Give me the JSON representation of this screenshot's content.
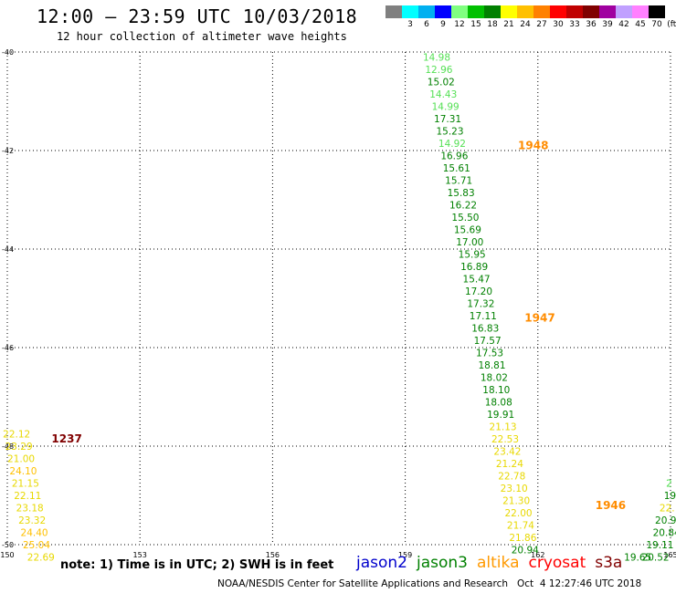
{
  "header": {
    "title": "12:00 — 23:59 UTC 10/03/2018",
    "subtitle": "12 hour collection of altimeter wave heights"
  },
  "legend": {
    "colors": [
      "#808080",
      "#00ffff",
      "#00b0f0",
      "#0000ff",
      "#80ff80",
      "#00c000",
      "#008000",
      "#ffff00",
      "#ffc000",
      "#ff8000",
      "#ff0000",
      "#c00000",
      "#800000",
      "#a000a0",
      "#c0a0ff",
      "#ff80ff",
      "#000000"
    ],
    "labels": [
      "",
      "3",
      "6",
      "9",
      "12",
      "15",
      "18",
      "21",
      "24",
      "27",
      "30",
      "33",
      "36",
      "39",
      "42",
      "45",
      "70",
      "(ft)"
    ]
  },
  "chart_data": {
    "type": "scatter",
    "title": "12:00 — 23:59 UTC 10/03/2018",
    "subtitle": "12 hour collection of altimeter wave heights",
    "xlabel": "",
    "ylabel": "",
    "xlim": [
      150,
      165
    ],
    "ylim": [
      -50,
      -40
    ],
    "x_ticks": [
      150,
      153,
      156,
      159,
      162,
      165
    ],
    "x_tick_labels": [
      "150",
      "153",
      "156",
      "159",
      "162",
      "165"
    ],
    "y_ticks": [
      -40,
      -42,
      -44,
      -46,
      -48,
      -50
    ],
    "y_tick_labels": [
      "-40",
      "-42",
      "-44",
      "-46",
      "-48",
      "-50"
    ],
    "grid": true,
    "points": [
      {
        "x": 159.4,
        "y": -40.1,
        "v": "14.98"
      },
      {
        "x": 159.45,
        "y": -40.35,
        "v": "12.96"
      },
      {
        "x": 159.5,
        "y": -40.6,
        "v": "15.02"
      },
      {
        "x": 159.55,
        "y": -40.85,
        "v": "14.43"
      },
      {
        "x": 159.6,
        "y": -41.1,
        "v": "14.99"
      },
      {
        "x": 159.65,
        "y": -41.35,
        "v": "17.31"
      },
      {
        "x": 159.7,
        "y": -41.6,
        "v": "15.23"
      },
      {
        "x": 159.75,
        "y": -41.85,
        "v": "14.92"
      },
      {
        "x": 159.8,
        "y": -42.1,
        "v": "16.96"
      },
      {
        "x": 159.85,
        "y": -42.35,
        "v": "15.61"
      },
      {
        "x": 159.9,
        "y": -42.6,
        "v": "15.71"
      },
      {
        "x": 159.95,
        "y": -42.85,
        "v": "15.83"
      },
      {
        "x": 160.0,
        "y": -43.1,
        "v": "16.22"
      },
      {
        "x": 160.05,
        "y": -43.35,
        "v": "15.50"
      },
      {
        "x": 160.1,
        "y": -43.6,
        "v": "15.69"
      },
      {
        "x": 160.15,
        "y": -43.85,
        "v": "17.00"
      },
      {
        "x": 160.2,
        "y": -44.1,
        "v": "15.95"
      },
      {
        "x": 160.25,
        "y": -44.35,
        "v": "16.89"
      },
      {
        "x": 160.3,
        "y": -44.6,
        "v": "15.47"
      },
      {
        "x": 160.35,
        "y": -44.85,
        "v": "17.20"
      },
      {
        "x": 160.4,
        "y": -45.1,
        "v": "17.32"
      },
      {
        "x": 160.45,
        "y": -45.35,
        "v": "17.11"
      },
      {
        "x": 160.5,
        "y": -45.6,
        "v": "16.83"
      },
      {
        "x": 160.55,
        "y": -45.85,
        "v": "17.57"
      },
      {
        "x": 160.6,
        "y": -46.1,
        "v": "17.53"
      },
      {
        "x": 160.65,
        "y": -46.35,
        "v": "18.81"
      },
      {
        "x": 160.7,
        "y": -46.6,
        "v": "18.02"
      },
      {
        "x": 160.75,
        "y": -46.85,
        "v": "18.10"
      },
      {
        "x": 160.8,
        "y": -47.1,
        "v": "18.08"
      },
      {
        "x": 160.85,
        "y": -47.35,
        "v": "19.91"
      },
      {
        "x": 160.9,
        "y": -47.6,
        "v": "21.13"
      },
      {
        "x": 160.95,
        "y": -47.85,
        "v": "22.53"
      },
      {
        "x": 161.0,
        "y": -48.1,
        "v": "23.42"
      },
      {
        "x": 161.05,
        "y": -48.35,
        "v": "21.24"
      },
      {
        "x": 161.1,
        "y": -48.6,
        "v": "22.78"
      },
      {
        "x": 161.15,
        "y": -48.85,
        "v": "23.10"
      },
      {
        "x": 161.2,
        "y": -49.1,
        "v": "21.30"
      },
      {
        "x": 161.25,
        "y": -49.35,
        "v": "22.00"
      },
      {
        "x": 161.3,
        "y": -49.6,
        "v": "21.74"
      },
      {
        "x": 161.35,
        "y": -49.85,
        "v": "21.86"
      },
      {
        "x": 161.4,
        "y": -50.1,
        "v": "20.94"
      },
      {
        "x": 149.9,
        "y": -47.75,
        "v": "22.12"
      },
      {
        "x": 149.95,
        "y": -48.0,
        "v": "23.29"
      },
      {
        "x": 150.0,
        "y": -48.25,
        "v": "21.00"
      },
      {
        "x": 150.05,
        "y": -48.5,
        "v": "24.10"
      },
      {
        "x": 150.1,
        "y": -48.75,
        "v": "21.15"
      },
      {
        "x": 150.15,
        "y": -49.0,
        "v": "22.11"
      },
      {
        "x": 150.2,
        "y": -49.25,
        "v": "23.18"
      },
      {
        "x": 150.25,
        "y": -49.5,
        "v": "23.32"
      },
      {
        "x": 150.3,
        "y": -49.75,
        "v": "24.40"
      },
      {
        "x": 150.35,
        "y": -50.0,
        "v": "25.04"
      },
      {
        "x": 150.45,
        "y": -50.25,
        "v": "22.69"
      },
      {
        "x": 164.9,
        "y": -48.75,
        "v": "2"
      },
      {
        "x": 164.85,
        "y": -49.0,
        "v": "19"
      },
      {
        "x": 164.75,
        "y": -49.25,
        "v": "22."
      },
      {
        "x": 164.65,
        "y": -49.5,
        "v": "20.9"
      },
      {
        "x": 164.6,
        "y": -49.75,
        "v": "20.84"
      },
      {
        "x": 164.45,
        "y": -50.0,
        "v": "19.11"
      },
      {
        "x": 164.35,
        "y": -50.25,
        "v": "20.52"
      },
      {
        "x": 163.95,
        "y": -50.25,
        "v": "19.65"
      }
    ],
    "storm_labels": [
      {
        "x": 161.55,
        "y": -41.9,
        "v": "1948"
      },
      {
        "x": 161.7,
        "y": -45.4,
        "v": "1947"
      },
      {
        "x": 163.3,
        "y": -49.2,
        "v": "1946"
      },
      {
        "x": 151.0,
        "y": -47.85,
        "v": "1237"
      }
    ]
  },
  "footer": {
    "note": "note: 1) Time is in UTC; 2) SWH is in feet",
    "satellites": [
      {
        "name": "jason2",
        "color": "#0000cc"
      },
      {
        "name": "jason3",
        "color": "#008000"
      },
      {
        "name": "altika",
        "color": "#ff9900"
      },
      {
        "name": "cryosat",
        "color": "#ff0000"
      },
      {
        "name": "s3a",
        "color": "#800000"
      }
    ],
    "credit": "NOAA/NESDIS Center for Satellite Applications and Research   Oct  4 12:27:46 UTC 2018"
  }
}
